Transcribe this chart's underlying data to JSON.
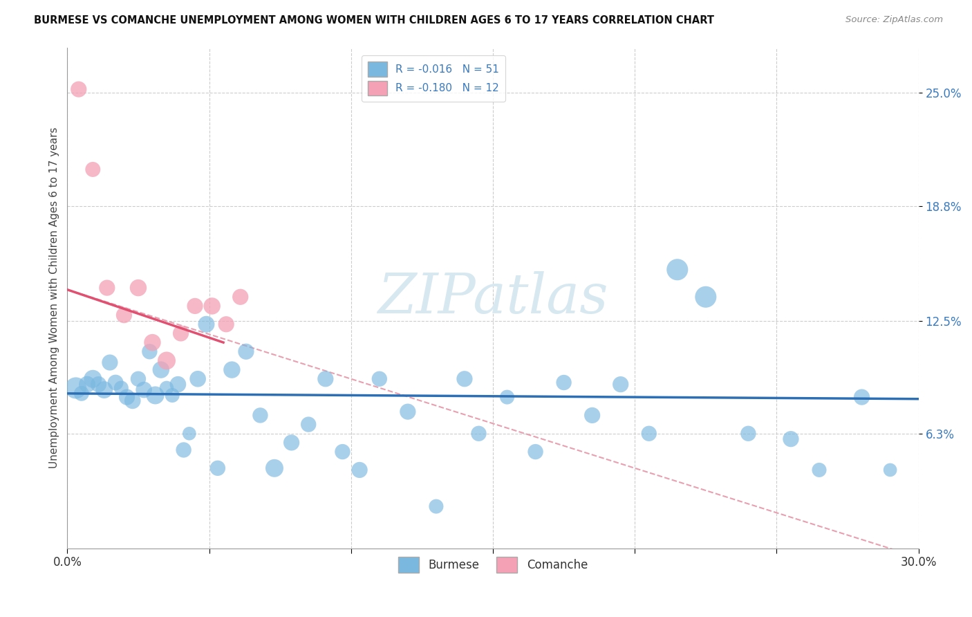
{
  "title": "BURMESE VS COMANCHE UNEMPLOYMENT AMONG WOMEN WITH CHILDREN AGES 6 TO 17 YEARS CORRELATION CHART",
  "source": "Source: ZipAtlas.com",
  "ylabel": "Unemployment Among Women with Children Ages 6 to 17 years",
  "y_values": [
    25.0,
    18.8,
    12.5,
    6.3
  ],
  "xlim": [
    0.0,
    30.0
  ],
  "ylim": [
    0.0,
    27.5
  ],
  "legend_burmese": "Burmese",
  "legend_comanche": "Comanche",
  "R_burmese": -0.016,
  "N_burmese": 51,
  "R_comanche": -0.18,
  "N_comanche": 12,
  "burmese_color": "#7ab8e0",
  "comanche_color": "#f4a0b5",
  "burmese_line_color": "#2d6fb5",
  "comanche_line_color": "#e05070",
  "comanche_dash_color": "#e8a0b0",
  "watermark_color": "#d8e8f0",
  "burmese_x": [
    0.3,
    0.5,
    0.7,
    0.9,
    1.1,
    1.3,
    1.5,
    1.7,
    1.9,
    2.1,
    2.3,
    2.5,
    2.7,
    2.9,
    3.1,
    3.3,
    3.5,
    3.7,
    3.9,
    4.1,
    4.3,
    4.6,
    4.9,
    5.3,
    5.8,
    6.3,
    6.8,
    7.3,
    7.9,
    8.5,
    9.1,
    9.7,
    10.3,
    11.0,
    12.0,
    13.0,
    14.0,
    14.5,
    15.5,
    16.5,
    17.5,
    18.5,
    19.5,
    20.5,
    21.5,
    22.5,
    24.0,
    25.5,
    26.5,
    28.0,
    29.0
  ],
  "burmese_y": [
    8.8,
    8.5,
    9.0,
    9.3,
    9.0,
    8.7,
    10.2,
    9.1,
    8.8,
    8.3,
    8.1,
    9.3,
    8.7,
    10.8,
    8.4,
    9.8,
    8.8,
    8.4,
    9.0,
    5.4,
    6.3,
    9.3,
    12.3,
    4.4,
    9.8,
    10.8,
    7.3,
    4.4,
    5.8,
    6.8,
    9.3,
    5.3,
    4.3,
    9.3,
    7.5,
    2.3,
    9.3,
    6.3,
    8.3,
    5.3,
    9.1,
    7.3,
    9.0,
    6.3,
    15.3,
    13.8,
    6.3,
    6.0,
    4.3,
    8.3,
    4.3
  ],
  "burmese_size": [
    500,
    250,
    300,
    350,
    280,
    320,
    280,
    270,
    230,
    280,
    290,
    260,
    290,
    260,
    350,
    310,
    220,
    230,
    290,
    260,
    200,
    290,
    300,
    260,
    310,
    280,
    260,
    350,
    280,
    260,
    280,
    260,
    280,
    260,
    280,
    230,
    280,
    260,
    230,
    260,
    260,
    280,
    280,
    260,
    500,
    500,
    260,
    280,
    230,
    280,
    200
  ],
  "comanche_x": [
    0.4,
    0.9,
    1.4,
    2.0,
    2.5,
    3.0,
    3.5,
    4.0,
    4.5,
    5.1,
    5.6,
    6.1
  ],
  "comanche_y": [
    25.2,
    20.8,
    14.3,
    12.8,
    14.3,
    11.3,
    10.3,
    11.8,
    13.3,
    13.3,
    12.3,
    13.8
  ],
  "comanche_size": [
    280,
    250,
    280,
    280,
    310,
    310,
    350,
    280,
    280,
    310,
    280,
    280
  ],
  "burmese_trend_x0": 0.0,
  "burmese_trend_x1": 30.0,
  "burmese_trend_y0": 8.5,
  "burmese_trend_y1": 8.2,
  "comanche_solid_x0": 0.0,
  "comanche_solid_x1": 5.5,
  "comanche_solid_y0": 14.2,
  "comanche_solid_y1": 11.3,
  "comanche_dash_x0": 0.0,
  "comanche_dash_x1": 30.0,
  "comanche_dash_y0": 14.2,
  "comanche_dash_y1": -0.5
}
